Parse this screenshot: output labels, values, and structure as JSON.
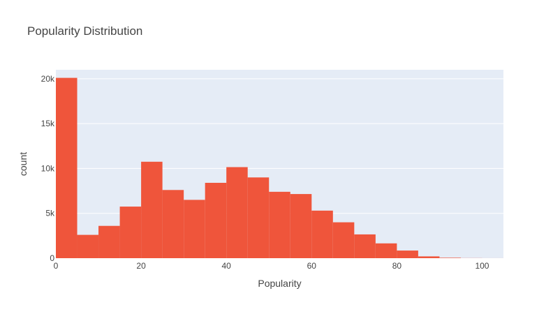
{
  "chart_data": {
    "type": "bar",
    "title": "Popularity Distribution",
    "xlabel": "Popularity",
    "ylabel": "count",
    "xlim": [
      0,
      105
    ],
    "ylim": [
      0,
      21000
    ],
    "bin_width": 5,
    "bins": [
      {
        "start": 0,
        "end": 5,
        "count": 20100
      },
      {
        "start": 5,
        "end": 10,
        "count": 2600
      },
      {
        "start": 10,
        "end": 15,
        "count": 3600
      },
      {
        "start": 15,
        "end": 20,
        "count": 5750
      },
      {
        "start": 20,
        "end": 25,
        "count": 10750
      },
      {
        "start": 25,
        "end": 30,
        "count": 7600
      },
      {
        "start": 30,
        "end": 35,
        "count": 6500
      },
      {
        "start": 35,
        "end": 40,
        "count": 8400
      },
      {
        "start": 40,
        "end": 45,
        "count": 10150
      },
      {
        "start": 45,
        "end": 50,
        "count": 9000
      },
      {
        "start": 50,
        "end": 55,
        "count": 7400
      },
      {
        "start": 55,
        "end": 60,
        "count": 7150
      },
      {
        "start": 60,
        "end": 65,
        "count": 5300
      },
      {
        "start": 65,
        "end": 70,
        "count": 4000
      },
      {
        "start": 70,
        "end": 75,
        "count": 2650
      },
      {
        "start": 75,
        "end": 80,
        "count": 1650
      },
      {
        "start": 80,
        "end": 85,
        "count": 850
      },
      {
        "start": 85,
        "end": 90,
        "count": 200
      },
      {
        "start": 90,
        "end": 95,
        "count": 50
      },
      {
        "start": 95,
        "end": 100,
        "count": 10
      },
      {
        "start": 100,
        "end": 105,
        "count": 2
      }
    ],
    "x_ticks": [
      {
        "value": 0,
        "label": "0"
      },
      {
        "value": 20,
        "label": "20"
      },
      {
        "value": 40,
        "label": "40"
      },
      {
        "value": 60,
        "label": "60"
      },
      {
        "value": 80,
        "label": "80"
      },
      {
        "value": 100,
        "label": "100"
      }
    ],
    "y_ticks": [
      {
        "value": 0,
        "label": "0"
      },
      {
        "value": 5000,
        "label": "5k"
      },
      {
        "value": 10000,
        "label": "10k"
      },
      {
        "value": 15000,
        "label": "15k"
      },
      {
        "value": 20000,
        "label": "20k"
      }
    ],
    "grid": true,
    "legend": "none",
    "colors": {
      "bar": "#EF553B",
      "plot_background": "#E5ECF6",
      "gridline": "#ffffff",
      "text": "#444444"
    }
  }
}
